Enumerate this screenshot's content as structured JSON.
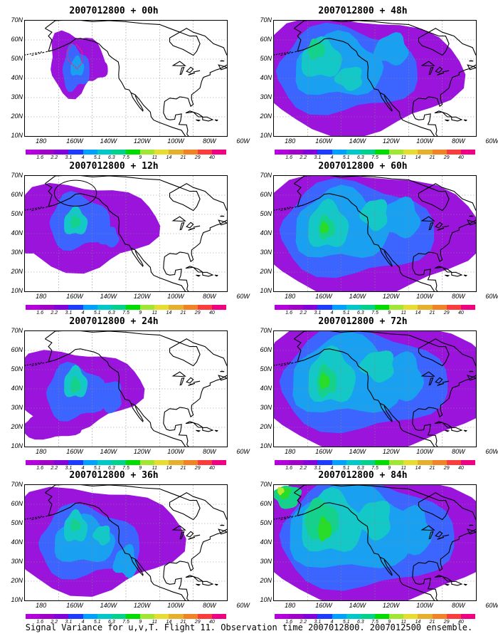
{
  "caption": "Signal Variance for u,v,T. Flight 11. Observation time 2007012800. 2007012500 ensemble.",
  "lat_labels": [
    "70N",
    "60N",
    "50N",
    "40N",
    "30N",
    "20N",
    "10N"
  ],
  "lon_labels": [
    "180",
    "160W",
    "140W",
    "120W",
    "100W",
    "80W",
    "60W"
  ],
  "colorbar": {
    "labels": [
      "1.6",
      "2.2",
      "3.1",
      "4",
      "5.1",
      "6.3",
      "7.5",
      "9",
      "11",
      "14",
      "21",
      "29",
      "40"
    ],
    "colors": [
      "#a000c8",
      "#8200dc",
      "#1e3cff",
      "#00a0ff",
      "#00c8c8",
      "#00d28c",
      "#00dc00",
      "#a0e632",
      "#e6dc32",
      "#e6af2d",
      "#f08228",
      "#fa3c3c",
      "#f00082"
    ]
  },
  "map_colors": {
    "purple": "#9a14dc",
    "blue": "#3c64ff",
    "lightblue": "#1aa0f0",
    "cyan": "#14c8c8",
    "teal": "#14d28c",
    "green": "#28dc28",
    "yellowgreen": "#b4e632",
    "coast": "#000000"
  },
  "panels": [
    {
      "title": "2007012800 + 00h",
      "level": 0
    },
    {
      "title": "2007012800 + 48h",
      "level": 4
    },
    {
      "title": "2007012800 + 12h",
      "level": 1
    },
    {
      "title": "2007012800 + 60h",
      "level": 5
    },
    {
      "title": "2007012800 + 24h",
      "level": 2
    },
    {
      "title": "2007012800 + 72h",
      "level": 6
    },
    {
      "title": "2007012800 + 36h",
      "level": 3
    },
    {
      "title": "2007012800 + 84h",
      "level": 7
    }
  ]
}
